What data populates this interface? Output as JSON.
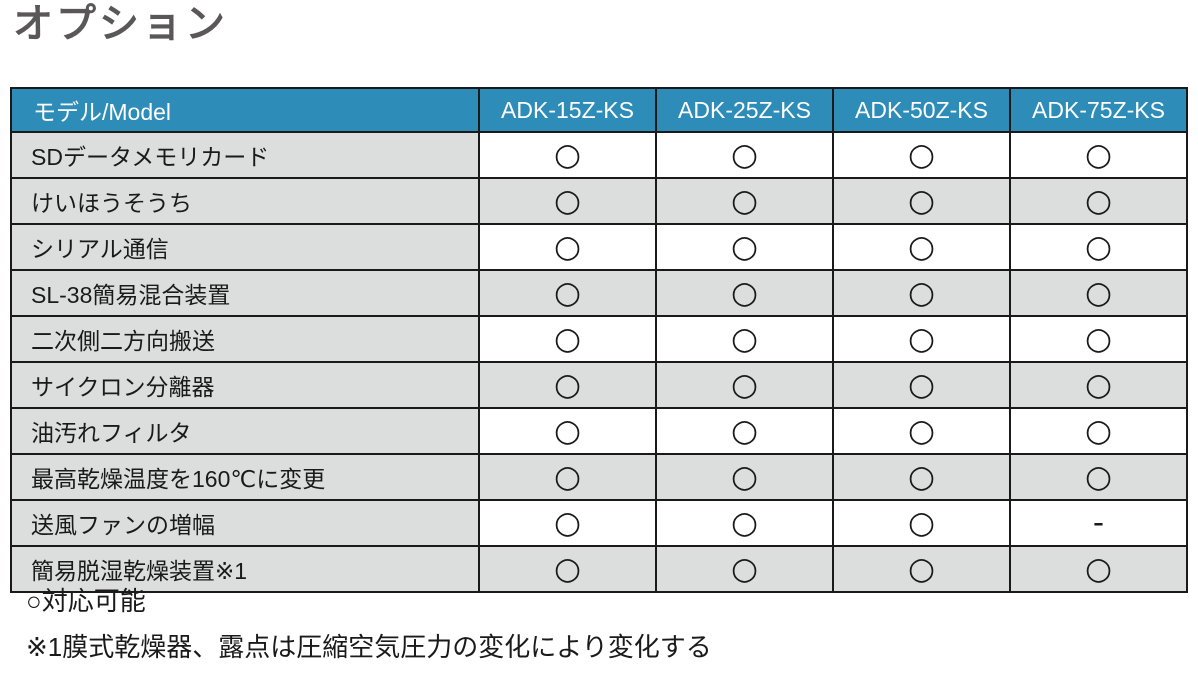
{
  "page": {
    "title": "オプション"
  },
  "table": {
    "header": {
      "model_label": "モデル/Model",
      "columns": [
        "ADK-15Z-KS",
        "ADK-25Z-KS",
        "ADK-50Z-KS",
        "ADK-75Z-KS"
      ]
    },
    "rows": [
      {
        "label": "SDデータメモリカード",
        "values": [
          "○",
          "○",
          "○",
          "○"
        ]
      },
      {
        "label": "けいほうそうち",
        "values": [
          "○",
          "○",
          "○",
          "○"
        ]
      },
      {
        "label": "シリアル通信",
        "values": [
          "○",
          "○",
          "○",
          "○"
        ]
      },
      {
        "label": "SL-38簡易混合装置",
        "values": [
          "○",
          "○",
          "○",
          "○"
        ]
      },
      {
        "label": "二次側二方向搬送",
        "values": [
          "○",
          "○",
          "○",
          "○"
        ]
      },
      {
        "label": "サイクロン分離器",
        "values": [
          "○",
          "○",
          "○",
          "○"
        ]
      },
      {
        "label": "油汚れフィルタ",
        "values": [
          "○",
          "○",
          "○",
          "○"
        ]
      },
      {
        "label": "最高乾燥温度を160℃に変更",
        "values": [
          "○",
          "○",
          "○",
          "○"
        ]
      },
      {
        "label": "送風ファンの増幅",
        "values": [
          "○",
          "○",
          "○",
          "-"
        ]
      },
      {
        "label": "簡易脱湿乾燥装置※1",
        "values": [
          "○",
          "○",
          "○",
          "○"
        ]
      }
    ]
  },
  "legend": {
    "available": "○対応可能",
    "note1": "※1膜式乾燥器、露点は圧縮空気圧力の変化により変化する"
  },
  "colors": {
    "header_bg": "#2d8cb8",
    "header_text": "#ffffff",
    "alt_row_bg": "#dcdddd",
    "border": "#1a1a1a",
    "title_text": "#595757"
  }
}
